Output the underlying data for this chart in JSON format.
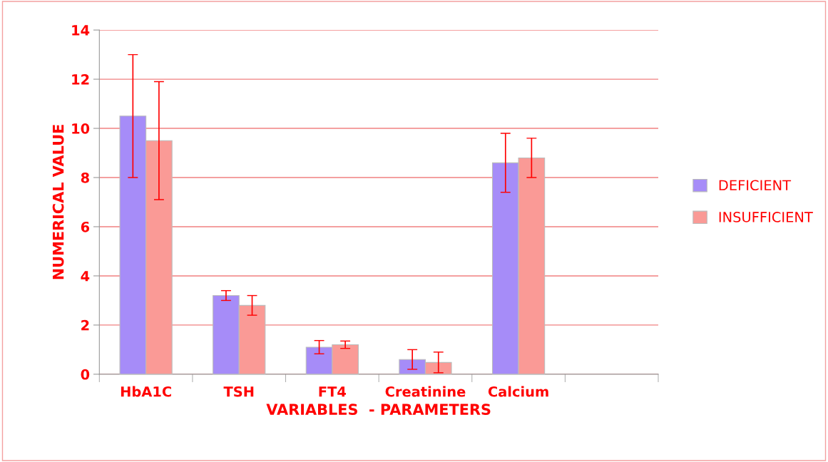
{
  "chart_data": {
    "type": "bar",
    "xlabel": "VARIABLES  - PARAMETERS",
    "ylabel": "NUMERICAL VALUE",
    "categories": [
      "HbA1C",
      "TSH",
      "FT4",
      "Creatinine",
      "Calcium",
      null
    ],
    "series": [
      {
        "name": "DEFICIENT",
        "color": "#a68cf8",
        "values": [
          10.5,
          3.2,
          1.1,
          0.6,
          8.6,
          null
        ],
        "errors": [
          2.5,
          0.2,
          0.27,
          0.4,
          1.2,
          null
        ]
      },
      {
        "name": "INSUFFICIENT",
        "color": "#fa9a96",
        "values": [
          9.5,
          2.8,
          1.2,
          0.48,
          8.8,
          null
        ],
        "errors": [
          2.4,
          0.4,
          0.15,
          0.42,
          0.8,
          null
        ]
      }
    ],
    "ylim": [
      0,
      14
    ],
    "yticks": [
      0,
      2,
      4,
      6,
      8,
      10,
      12,
      14
    ],
    "grid": "y",
    "legend": "right"
  }
}
